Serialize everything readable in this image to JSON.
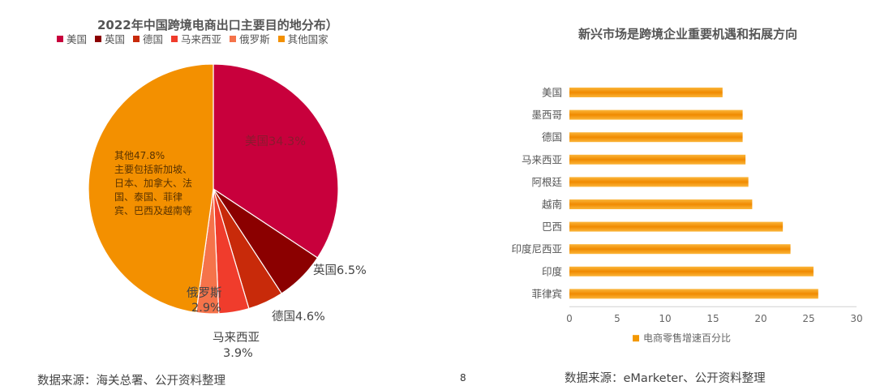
{
  "page_number": "8",
  "chart_data": [
    {
      "type": "pie",
      "title": "2022年中国跨境电商出口主要目的地分布）",
      "legend": [
        "美国",
        "英国",
        "德国",
        "马来西亚",
        "俄罗斯",
        "其他国家"
      ],
      "legend_position": "top",
      "slices": [
        {
          "name": "美国",
          "value": 34.3,
          "color": "#C8003C",
          "label": "美国34.3%"
        },
        {
          "name": "英国",
          "value": 6.5,
          "color": "#8B0000",
          "label": "英国6.5%"
        },
        {
          "name": "德国",
          "value": 4.6,
          "color": "#C82A0A",
          "label": "德国4.6%"
        },
        {
          "name": "马来西亚",
          "value": 3.9,
          "color": "#F03C2C",
          "label_lines": [
            "马来西亚",
            "3.9%"
          ]
        },
        {
          "name": "俄罗斯",
          "value": 2.9,
          "color": "#F5734A",
          "label_lines": [
            "俄罗斯",
            "2.9%"
          ]
        },
        {
          "name": "其他国家",
          "value": 47.8,
          "color": "#F39000",
          "label_lines": [
            "其他47.8%",
            "主要包括新加坡、",
            "日本、加拿大、法",
            "国、泰国、菲律",
            "宾、巴西及越南等"
          ]
        }
      ],
      "source": "数据来源：海关总署、公开资料整理"
    },
    {
      "type": "bar",
      "orientation": "horizontal",
      "title": "新兴市场是跨境企业重要机遇和拓展方向",
      "categories": [
        "美国",
        "墨西哥",
        "德国",
        "马来西亚",
        "阿根廷",
        "越南",
        "巴西",
        "印度尼西亚",
        "印度",
        "菲律宾"
      ],
      "series": [
        {
          "name": "电商零售增速百分比",
          "color": "#F39800",
          "values": [
            16.0,
            18.1,
            18.1,
            18.4,
            18.7,
            19.1,
            22.3,
            23.1,
            25.5,
            26.0
          ]
        }
      ],
      "xlim": [
        0,
        30
      ],
      "xticks": [
        "0",
        "5",
        "10",
        "15",
        "20",
        "25",
        "30"
      ],
      "legend_position": "bottom",
      "grid": false,
      "source": "数据来源：eMarketer、公开资料整理"
    }
  ]
}
